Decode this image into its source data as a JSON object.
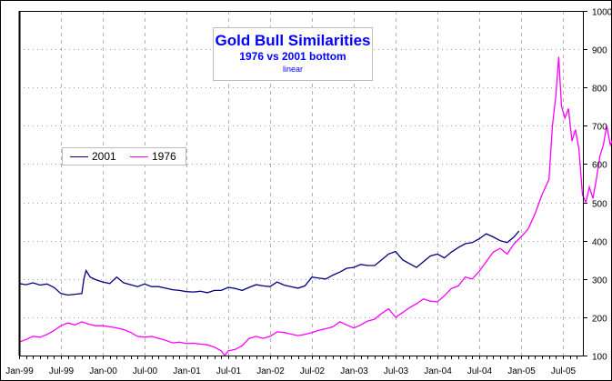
{
  "chart_data": {
    "type": "line",
    "title": "Gold Bull Similarities",
    "subtitle": "1976 vs 2001 bottom",
    "scale_note": "linear",
    "xlabel": "",
    "ylabel": "",
    "x_tick_labels": [
      "Jan-99",
      "Jul-99",
      "Jan-00",
      "Jul-00",
      "Jan-01",
      "Jul-01",
      "Jan-02",
      "Jul-02",
      "Jan-03",
      "Jul-03",
      "Jan-04",
      "Jul-04",
      "Jan-05",
      "Jul-05"
    ],
    "y_tick_labels": [
      "100",
      "200",
      "300",
      "400",
      "500",
      "600",
      "700",
      "800",
      "900",
      "1000"
    ],
    "ylim": [
      100,
      1000
    ],
    "xlim_months_from_jan99": [
      0,
      80.5
    ],
    "y_axis_side": "right",
    "grid": {
      "vertical": "dashed",
      "horizontal": "dotted"
    },
    "legend_position": "left-middle",
    "series": [
      {
        "name": "2001",
        "color": "#000080",
        "points_month_value": [
          [
            0,
            288
          ],
          [
            1,
            285
          ],
          [
            2,
            290
          ],
          [
            3,
            284
          ],
          [
            4,
            287
          ],
          [
            5,
            278
          ],
          [
            6,
            262
          ],
          [
            7,
            258
          ],
          [
            8,
            260
          ],
          [
            9,
            262
          ],
          [
            9.3,
            300
          ],
          [
            9.6,
            322
          ],
          [
            10.2,
            305
          ],
          [
            11,
            298
          ],
          [
            12,
            292
          ],
          [
            13,
            288
          ],
          [
            14,
            305
          ],
          [
            15,
            290
          ],
          [
            16,
            285
          ],
          [
            17,
            280
          ],
          [
            18,
            287
          ],
          [
            19,
            280
          ],
          [
            20,
            280
          ],
          [
            21,
            276
          ],
          [
            22,
            272
          ],
          [
            23,
            270
          ],
          [
            24,
            267
          ],
          [
            25,
            266
          ],
          [
            26,
            268
          ],
          [
            27,
            264
          ],
          [
            28,
            270
          ],
          [
            29,
            270
          ],
          [
            30,
            278
          ],
          [
            31,
            275
          ],
          [
            32,
            270
          ],
          [
            33,
            278
          ],
          [
            34,
            285
          ],
          [
            35,
            282
          ],
          [
            36,
            280
          ],
          [
            37,
            292
          ],
          [
            38,
            284
          ],
          [
            39,
            280
          ],
          [
            40,
            276
          ],
          [
            41,
            282
          ],
          [
            42,
            305
          ],
          [
            43,
            302
          ],
          [
            44,
            300
          ],
          [
            45,
            310
          ],
          [
            46,
            318
          ],
          [
            47,
            328
          ],
          [
            48,
            330
          ],
          [
            49,
            338
          ],
          [
            50,
            335
          ],
          [
            51,
            335
          ],
          [
            52,
            350
          ],
          [
            53,
            365
          ],
          [
            54,
            372
          ],
          [
            55,
            350
          ],
          [
            56,
            340
          ],
          [
            57,
            330
          ],
          [
            58,
            345
          ],
          [
            59,
            360
          ],
          [
            60,
            365
          ],
          [
            61,
            355
          ],
          [
            62,
            370
          ],
          [
            63,
            382
          ],
          [
            64,
            392
          ],
          [
            65,
            395
          ],
          [
            66,
            405
          ],
          [
            67,
            418
          ],
          [
            68,
            410
          ],
          [
            69,
            400
          ],
          [
            70,
            395
          ],
          [
            71,
            410
          ],
          [
            71.7,
            425
          ]
        ]
      },
      {
        "name": "1976",
        "color": "#ff00ff",
        "points_month_value": [
          [
            0,
            135
          ],
          [
            1,
            142
          ],
          [
            2,
            150
          ],
          [
            3,
            148
          ],
          [
            4,
            155
          ],
          [
            5,
            165
          ],
          [
            6,
            178
          ],
          [
            7,
            185
          ],
          [
            8,
            180
          ],
          [
            9,
            188
          ],
          [
            10,
            182
          ],
          [
            11,
            178
          ],
          [
            12,
            178
          ],
          [
            13,
            175
          ],
          [
            14,
            172
          ],
          [
            15,
            168
          ],
          [
            16,
            160
          ],
          [
            17,
            150
          ],
          [
            18,
            148
          ],
          [
            19,
            150
          ],
          [
            20,
            145
          ],
          [
            21,
            140
          ],
          [
            22,
            133
          ],
          [
            23,
            135
          ],
          [
            24,
            131
          ],
          [
            25,
            132
          ],
          [
            26,
            130
          ],
          [
            27,
            128
          ],
          [
            28,
            122
          ],
          [
            29,
            112
          ],
          [
            29.5,
            100
          ],
          [
            30,
            112
          ],
          [
            31,
            116
          ],
          [
            32,
            126
          ],
          [
            33,
            145
          ],
          [
            34,
            150
          ],
          [
            35,
            145
          ],
          [
            36,
            150
          ],
          [
            37,
            162
          ],
          [
            38,
            160
          ],
          [
            39,
            156
          ],
          [
            40,
            152
          ],
          [
            41,
            155
          ],
          [
            42,
            160
          ],
          [
            43,
            166
          ],
          [
            44,
            170
          ],
          [
            45,
            175
          ],
          [
            46,
            188
          ],
          [
            47,
            180
          ],
          [
            48,
            172
          ],
          [
            49,
            180
          ],
          [
            50,
            190
          ],
          [
            51,
            195
          ],
          [
            52,
            210
          ],
          [
            53,
            222
          ],
          [
            54,
            200
          ],
          [
            55,
            212
          ],
          [
            56,
            225
          ],
          [
            57,
            235
          ],
          [
            58,
            248
          ],
          [
            59,
            242
          ],
          [
            60,
            240
          ],
          [
            61,
            256
          ],
          [
            62,
            275
          ],
          [
            63,
            282
          ],
          [
            64,
            305
          ],
          [
            65,
            300
          ],
          [
            66,
            320
          ],
          [
            67,
            345
          ],
          [
            68,
            370
          ],
          [
            69,
            380
          ],
          [
            70,
            365
          ],
          [
            71,
            392
          ],
          [
            72,
            410
          ],
          [
            73,
            430
          ],
          [
            74,
            470
          ],
          [
            75,
            520
          ],
          [
            76,
            560
          ],
          [
            76.5,
            700
          ],
          [
            77,
            780
          ],
          [
            77.4,
            880
          ],
          [
            77.8,
            750
          ],
          [
            78.3,
            720
          ],
          [
            78.8,
            745
          ],
          [
            79.3,
            660
          ],
          [
            79.8,
            690
          ],
          [
            80.3,
            640
          ],
          [
            80.8,
            520
          ],
          [
            81.3,
            500
          ],
          [
            81.8,
            540
          ],
          [
            82.3,
            510
          ],
          [
            82.8,
            560
          ],
          [
            83.3,
            620
          ],
          [
            83.8,
            650
          ],
          [
            84.3,
            700
          ],
          [
            84.8,
            650
          ],
          [
            85.3,
            670
          ],
          [
            85.8,
            690
          ],
          [
            86.3,
            745
          ],
          [
            86.8,
            700
          ],
          [
            87.3,
            680
          ],
          [
            87.8,
            640
          ],
          [
            88.3,
            660
          ],
          [
            88.8,
            600
          ],
          [
            89.3,
            640
          ],
          [
            89.8,
            560
          ],
          [
            90,
            590
          ]
        ]
      }
    ]
  },
  "title_box": {
    "line1": "Gold Bull Similarities",
    "line2": "1976 vs 2001 bottom",
    "line3": "linear"
  },
  "legend": [
    {
      "label": "2001",
      "color": "#000080"
    },
    {
      "label": "1976",
      "color": "#ff00ff"
    }
  ]
}
